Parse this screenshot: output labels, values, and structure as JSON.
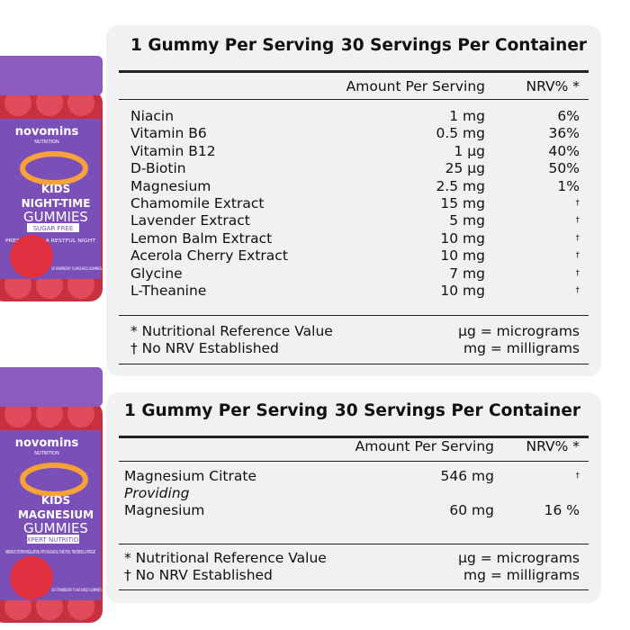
{
  "products": [
    {
      "brand": "novomins",
      "sub": "NUTRITION",
      "lines": [
        "KIDS",
        "NIGHT-TIME",
        "GUMMIES"
      ],
      "badge": "SUGAR FREE",
      "tagline": "PREPARE FOR A RESTFUL NIGHT",
      "count": "30 RASPBERRY FLAVOURED GUMMIES"
    },
    {
      "brand": "novomins",
      "sub": "NUTRITION",
      "lines": [
        "KIDS",
        "MAGNESIUM",
        "GUMMIES"
      ],
      "badge": "EXPERT NUTRITION",
      "tagline": "NERVOUS SYSTEM REGULATION, PSYCHOLOGICAL FUNCTION, TIREDNESS & FATIGUE",
      "count": "30 STRAWBERRY FLAVOURED GUMMIES"
    }
  ],
  "panels": [
    {
      "serving": "1 Gummy Per Serving",
      "per_container": "30 Servings Per Container",
      "col_amount": "Amount Per Serving",
      "col_nrv": "NRV% *",
      "rows": [
        {
          "name": "Niacin",
          "amount": "1 mg",
          "nrv": "6%"
        },
        {
          "name": "Vitamin B6",
          "amount": "0.5 mg",
          "nrv": "36%"
        },
        {
          "name": "Vitamin B12",
          "amount": "1 µg",
          "nrv": "40%"
        },
        {
          "name": "D-Biotin",
          "amount": "25 µg",
          "nrv": "50%"
        },
        {
          "name": "Magnesium",
          "amount": "2.5 mg",
          "nrv": "1%"
        },
        {
          "name": "Chamomile Extract",
          "amount": "15 mg",
          "nrv": "†"
        },
        {
          "name": "Lavender Extract",
          "amount": "5 mg",
          "nrv": "†"
        },
        {
          "name": "Lemon Balm Extract",
          "amount": "10 mg",
          "nrv": "†"
        },
        {
          "name": "Acerola Cherry Extract",
          "amount": "10 mg",
          "nrv": "†"
        },
        {
          "name": "Glycine",
          "amount": "7 mg",
          "nrv": "†"
        },
        {
          "name": "L-Theanine",
          "amount": "10 mg",
          "nrv": "†"
        }
      ],
      "footnotes": [
        [
          "* Nutritional Reference Value",
          "µg = micrograms"
        ],
        [
          "† No NRV Established",
          "mg = milligrams"
        ]
      ]
    },
    {
      "serving": "1 Gummy Per Serving",
      "per_container": "30 Servings Per Container",
      "col_amount": "Amount Per Serving",
      "col_nrv": "NRV% *",
      "rows": [
        {
          "name": "Magnesium Citrate",
          "amount": "546 mg",
          "nrv": "†"
        },
        {
          "name": "Providing",
          "italic": true
        },
        {
          "name": "Magnesium",
          "amount": "60 mg",
          "nrv": "16 %"
        }
      ],
      "footnotes": [
        [
          "* Nutritional Reference Value",
          "µg = micrograms"
        ],
        [
          "† No NRV Established",
          "mg = milligrams"
        ]
      ]
    }
  ]
}
